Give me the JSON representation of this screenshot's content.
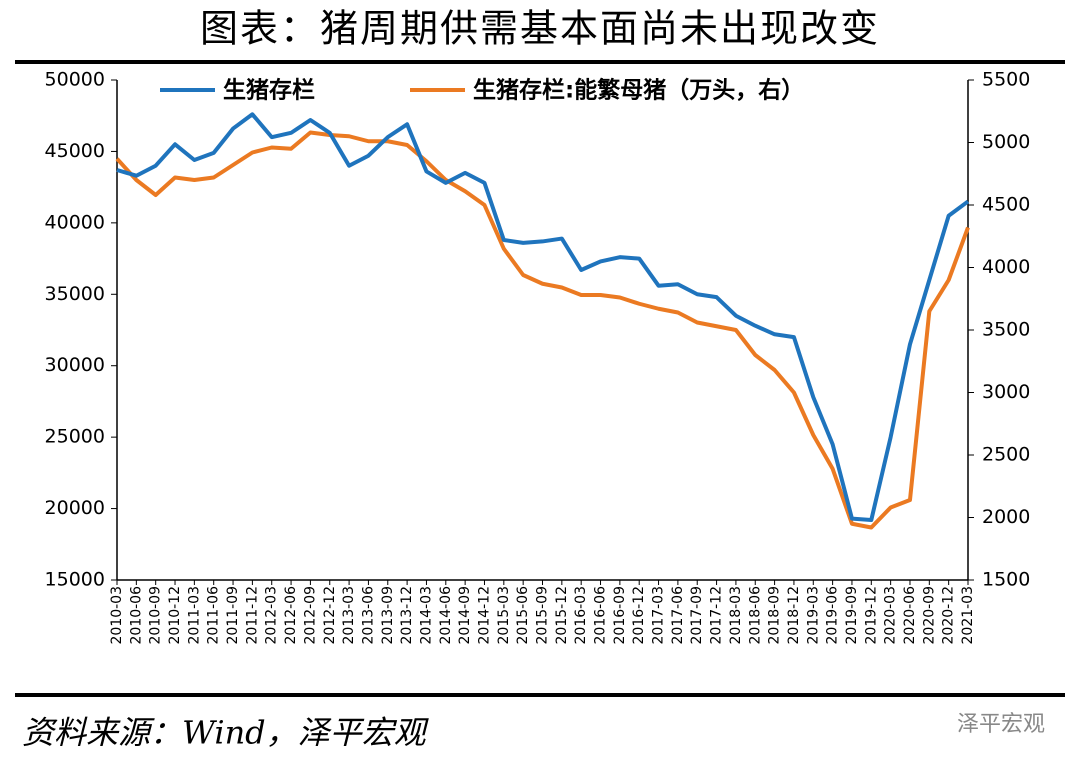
{
  "chart_data": {
    "type": "line",
    "title": "图表：猪周期供需基本面尚未出现改变",
    "source": "资料来源：Wind，泽平宏观",
    "watermark": "泽平宏观",
    "categories": [
      "2010-03",
      "2010-06",
      "2010-09",
      "2010-12",
      "2011-03",
      "2011-06",
      "2011-09",
      "2011-12",
      "2012-03",
      "2012-06",
      "2012-09",
      "2012-12",
      "2013-03",
      "2013-06",
      "2013-09",
      "2013-12",
      "2014-03",
      "2014-06",
      "2014-09",
      "2014-12",
      "2015-03",
      "2015-06",
      "2015-09",
      "2015-12",
      "2016-03",
      "2016-06",
      "2016-09",
      "2016-12",
      "2017-03",
      "2017-06",
      "2017-09",
      "2017-12",
      "2018-03",
      "2018-06",
      "2018-09",
      "2018-12",
      "2019-03",
      "2019-06",
      "2019-09",
      "2019-12",
      "2020-03",
      "2020-06",
      "2020-09",
      "2020-12",
      "2021-03"
    ],
    "series": [
      {
        "name": "生猪存栏",
        "color": "#1f74bd",
        "axis": "y",
        "values": [
          43700,
          43300,
          44000,
          45500,
          44400,
          44900,
          46600,
          47600,
          46000,
          46300,
          47200,
          46300,
          44000,
          44700,
          46000,
          46900,
          43600,
          42800,
          43500,
          42800,
          38800,
          38600,
          38700,
          38900,
          36700,
          37300,
          37600,
          37500,
          35600,
          35700,
          35000,
          34800,
          33500,
          32800,
          32200,
          32000,
          27800,
          24500,
          19300,
          19200,
          25000,
          31500,
          36000,
          40500,
          41500
        ]
      },
      {
        "name": "生猪存栏:能繁母猪（万头，右）",
        "color": "#eb7a22",
        "axis": "y2",
        "values": [
          4870,
          4700,
          4580,
          4720,
          4700,
          4720,
          4820,
          4920,
          4960,
          4950,
          5080,
          5060,
          5050,
          5010,
          5010,
          4980,
          4850,
          4700,
          4610,
          4500,
          4150,
          3940,
          3870,
          3840,
          3780,
          3780,
          3760,
          3710,
          3670,
          3640,
          3560,
          3530,
          3500,
          3300,
          3180,
          3000,
          2660,
          2390,
          1950,
          1920,
          2080,
          2140,
          3650,
          3900,
          4320
        ]
      }
    ],
    "ylim": [
      15000,
      50000
    ],
    "yticks": [
      15000,
      20000,
      25000,
      30000,
      35000,
      40000,
      45000,
      50000
    ],
    "y2lim": [
      1500,
      5500
    ],
    "y2ticks": [
      1500,
      2000,
      2500,
      3000,
      3500,
      4000,
      4500,
      5000,
      5500
    ],
    "grid": false
  }
}
